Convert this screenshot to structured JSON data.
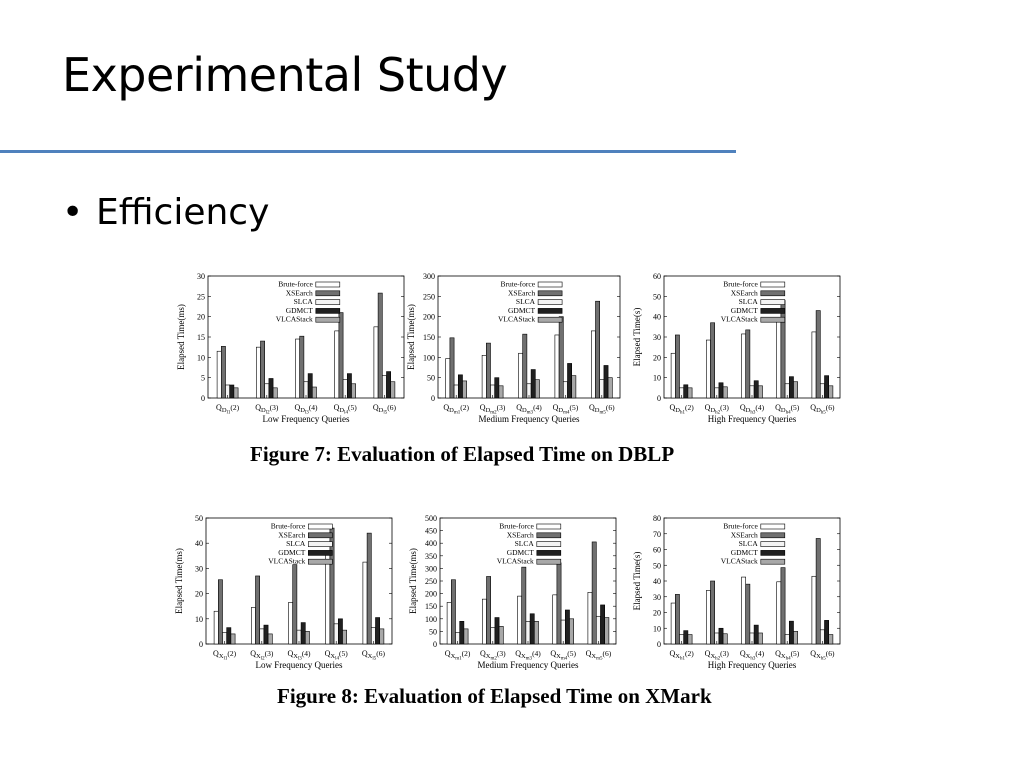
{
  "slide": {
    "title": "Experimental Study",
    "bullet": "Efficiency",
    "bullet_marker": "•"
  },
  "colors": {
    "title_rule": "#4f81bd",
    "series": [
      "#ffffff",
      "#707070",
      "#f4f4f4",
      "#202020",
      "#a8a8a8"
    ]
  },
  "figures": [
    {
      "caption": "Figure 7:  Evaluation of Elapsed Time on DBLP"
    },
    {
      "caption": "Figure 8:  Evaluation of Elapsed Time on XMark"
    }
  ],
  "chart_data": [
    {
      "type": "bar",
      "title": "",
      "xlabel": "Low Frequency Queries",
      "ylabel": "Elapsed Time(ms)",
      "ylim": [
        0,
        30
      ],
      "yticks": [
        0,
        5,
        10,
        15,
        20,
        25,
        30
      ],
      "legend_position": "top-center",
      "grid": false,
      "categories": [
        {
          "prefix": "Q",
          "sub": "D",
          "subsub": "l1",
          "suffix": "(2)"
        },
        {
          "prefix": "Q",
          "sub": "D",
          "subsub": "l2",
          "suffix": "(3)"
        },
        {
          "prefix": "Q",
          "sub": "D",
          "subsub": "l3",
          "suffix": "(4)"
        },
        {
          "prefix": "Q",
          "sub": "D",
          "subsub": "l4",
          "suffix": "(5)"
        },
        {
          "prefix": "Q",
          "sub": "D",
          "subsub": "l5",
          "suffix": "(6)"
        }
      ],
      "series": [
        {
          "name": "Brute-force",
          "values": [
            11.5,
            12.5,
            14.5,
            16.5,
            17.5
          ]
        },
        {
          "name": "XSEarch",
          "values": [
            12.7,
            14,
            15.2,
            21,
            25.8
          ]
        },
        {
          "name": "SLCA",
          "values": [
            3.2,
            3.5,
            4,
            4.5,
            5.5
          ]
        },
        {
          "name": "GDMCT",
          "values": [
            3.2,
            4.8,
            6,
            6,
            6.5
          ]
        },
        {
          "name": "VLCAStack",
          "values": [
            2.5,
            2.5,
            2.7,
            3.5,
            4
          ]
        }
      ]
    },
    {
      "type": "bar",
      "title": "",
      "xlabel": "Medium Frequency Queries",
      "ylabel": "Elapsed Time(ms)",
      "ylim": [
        0,
        300
      ],
      "yticks": [
        0,
        50,
        100,
        150,
        200,
        250,
        300
      ],
      "legend_position": "top-center",
      "grid": false,
      "categories": [
        {
          "prefix": "Q",
          "sub": "D",
          "subsub": "m1",
          "suffix": "(2)"
        },
        {
          "prefix": "Q",
          "sub": "D",
          "subsub": "m2",
          "suffix": "(3)"
        },
        {
          "prefix": "Q",
          "sub": "D",
          "subsub": "m3",
          "suffix": "(4)"
        },
        {
          "prefix": "Q",
          "sub": "D",
          "subsub": "m4",
          "suffix": "(5)"
        },
        {
          "prefix": "Q",
          "sub": "D",
          "subsub": "m5",
          "suffix": "(6)"
        }
      ],
      "series": [
        {
          "name": "Brute-force",
          "values": [
            97,
            105,
            110,
            155,
            165
          ]
        },
        {
          "name": "XSEarch",
          "values": [
            148,
            135,
            157,
            200,
            238
          ]
        },
        {
          "name": "SLCA",
          "values": [
            32,
            32,
            35,
            40,
            45
          ]
        },
        {
          "name": "GDMCT",
          "values": [
            57,
            50,
            70,
            85,
            80
          ]
        },
        {
          "name": "VLCAStack",
          "values": [
            42,
            30,
            45,
            55,
            50
          ]
        }
      ]
    },
    {
      "type": "bar",
      "title": "",
      "xlabel": "High Frequency Queries",
      "ylabel": "Elapsed Time(s)",
      "ylim": [
        0,
        60
      ],
      "yticks": [
        0,
        10,
        20,
        30,
        40,
        50,
        60
      ],
      "legend_position": "top-center",
      "grid": false,
      "categories": [
        {
          "prefix": "Q",
          "sub": "D",
          "subsub": "h1",
          "suffix": "(2)"
        },
        {
          "prefix": "Q",
          "sub": "D",
          "subsub": "h2",
          "suffix": "(3)"
        },
        {
          "prefix": "Q",
          "sub": "D",
          "subsub": "h3",
          "suffix": "(4)"
        },
        {
          "prefix": "Q",
          "sub": "D",
          "subsub": "h4",
          "suffix": "(5)"
        },
        {
          "prefix": "Q",
          "sub": "D",
          "subsub": "h5",
          "suffix": "(6)"
        }
      ],
      "series": [
        {
          "name": "Brute-force",
          "values": [
            22,
            28.5,
            31.5,
            39,
            32.5
          ]
        },
        {
          "name": "XSEarch",
          "values": [
            31,
            37,
            33.5,
            48,
            43
          ]
        },
        {
          "name": "SLCA",
          "values": [
            5,
            5,
            6,
            7,
            7
          ]
        },
        {
          "name": "GDMCT",
          "values": [
            6.5,
            7.5,
            8.5,
            10.5,
            11
          ]
        },
        {
          "name": "VLCAStack",
          "values": [
            5,
            5.5,
            6,
            8,
            6
          ]
        }
      ]
    },
    {
      "type": "bar",
      "title": "",
      "xlabel": "Low Frequency Queries",
      "ylabel": "Elapsed Time(ms)",
      "ylim": [
        0,
        50
      ],
      "yticks": [
        0,
        10,
        20,
        30,
        40,
        50
      ],
      "legend_position": "top-center",
      "grid": false,
      "categories": [
        {
          "prefix": "Q",
          "sub": "X",
          "subsub": "l1",
          "suffix": "(2)"
        },
        {
          "prefix": "Q",
          "sub": "X",
          "subsub": "l2",
          "suffix": "(3)"
        },
        {
          "prefix": "Q",
          "sub": "X",
          "subsub": "l3",
          "suffix": "(4)"
        },
        {
          "prefix": "Q",
          "sub": "X",
          "subsub": "l4",
          "suffix": "(5)"
        },
        {
          "prefix": "Q",
          "sub": "X",
          "subsub": "l5",
          "suffix": "(6)"
        }
      ],
      "series": [
        {
          "name": "Brute-force",
          "values": [
            13,
            14.5,
            16.5,
            36,
            32.5
          ]
        },
        {
          "name": "XSEarch",
          "values": [
            25.5,
            27,
            31.5,
            46,
            44
          ]
        },
        {
          "name": "SLCA",
          "values": [
            4.5,
            6,
            5.5,
            8,
            6.5
          ]
        },
        {
          "name": "GDMCT",
          "values": [
            6.5,
            7.5,
            8.5,
            10,
            10.5
          ]
        },
        {
          "name": "VLCAStack",
          "values": [
            4,
            4,
            5,
            5.5,
            6
          ]
        }
      ]
    },
    {
      "type": "bar",
      "title": "",
      "xlabel": "Medium Frequency Queries",
      "ylabel": "Elapsed Time(ms)",
      "ylim": [
        0,
        500
      ],
      "yticks": [
        0,
        50,
        100,
        150,
        200,
        250,
        300,
        350,
        400,
        450,
        500
      ],
      "legend_position": "top-center",
      "grid": false,
      "categories": [
        {
          "prefix": "Q",
          "sub": "X",
          "subsub": "m1",
          "suffix": "(2)"
        },
        {
          "prefix": "Q",
          "sub": "X",
          "subsub": "m2",
          "suffix": "(3)"
        },
        {
          "prefix": "Q",
          "sub": "X",
          "subsub": "m3",
          "suffix": "(4)"
        },
        {
          "prefix": "Q",
          "sub": "X",
          "subsub": "m4",
          "suffix": "(5)"
        },
        {
          "prefix": "Q",
          "sub": "X",
          "subsub": "m5",
          "suffix": "(6)"
        }
      ],
      "series": [
        {
          "name": "Brute-force",
          "values": [
            165,
            178,
            190,
            195,
            205
          ]
        },
        {
          "name": "XSEarch",
          "values": [
            255,
            268,
            305,
            322,
            405
          ]
        },
        {
          "name": "SLCA",
          "values": [
            45,
            65,
            90,
            95,
            110
          ]
        },
        {
          "name": "GDMCT",
          "values": [
            90,
            105,
            120,
            135,
            155
          ]
        },
        {
          "name": "VLCAStack",
          "values": [
            60,
            70,
            90,
            100,
            105
          ]
        }
      ]
    },
    {
      "type": "bar",
      "title": "",
      "xlabel": "High Frequency Queries",
      "ylabel": "Elapsed Time(s)",
      "ylim": [
        0,
        80
      ],
      "yticks": [
        0,
        10,
        20,
        30,
        40,
        50,
        60,
        70,
        80
      ],
      "legend_position": "top-center",
      "grid": false,
      "categories": [
        {
          "prefix": "Q",
          "sub": "X",
          "subsub": "h1",
          "suffix": "(2)"
        },
        {
          "prefix": "Q",
          "sub": "X",
          "subsub": "h2",
          "suffix": "(3)"
        },
        {
          "prefix": "Q",
          "sub": "X",
          "subsub": "h3",
          "suffix": "(4)"
        },
        {
          "prefix": "Q",
          "sub": "X",
          "subsub": "h4",
          "suffix": "(5)"
        },
        {
          "prefix": "Q",
          "sub": "X",
          "subsub": "h5",
          "suffix": "(6)"
        }
      ],
      "series": [
        {
          "name": "Brute-force",
          "values": [
            26,
            34,
            42.5,
            39.5,
            43
          ]
        },
        {
          "name": "XSEarch",
          "values": [
            31.5,
            40,
            38,
            48.5,
            67
          ]
        },
        {
          "name": "SLCA",
          "values": [
            6,
            7,
            7,
            6,
            9
          ]
        },
        {
          "name": "GDMCT",
          "values": [
            8.5,
            10,
            12,
            14.5,
            15
          ]
        },
        {
          "name": "VLCAStack",
          "values": [
            6,
            6.5,
            7,
            8,
            6
          ]
        }
      ]
    }
  ]
}
